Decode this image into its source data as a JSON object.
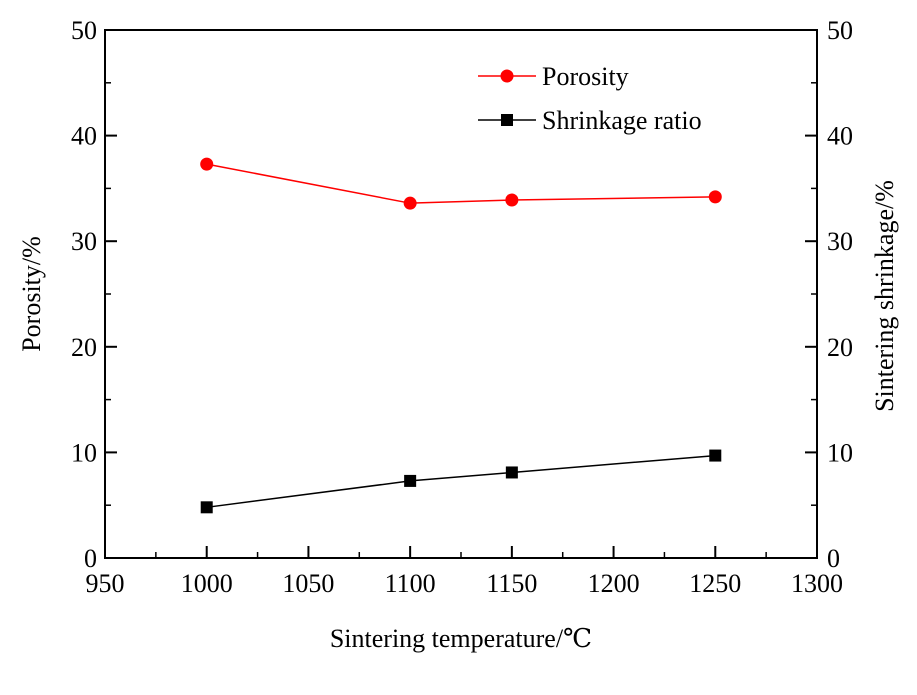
{
  "chart_data": {
    "type": "line",
    "xlabel": "Sintering temperature/℃",
    "ylabel_left": "Porosity/%",
    "ylabel_right": "Sintering shrinkage/%",
    "xlim": [
      950,
      1300
    ],
    "ylim_left": [
      0,
      50
    ],
    "ylim_right": [
      0,
      50
    ],
    "x_ticks": [
      "950",
      "1000",
      "1050",
      "1100",
      "1150",
      "1200",
      "1250",
      "1300"
    ],
    "y_ticks_left": [
      "0",
      "10",
      "20",
      "30",
      "40",
      "50"
    ],
    "y_ticks_right": [
      "0",
      "10",
      "20",
      "30",
      "40",
      "50"
    ],
    "grid": false,
    "legend_placement": "top-right",
    "series": [
      {
        "name": "Porosity",
        "marker": "circle",
        "axis": "left",
        "color": "#ff0000",
        "x": [
          1000,
          1100,
          1150,
          1250
        ],
        "values": [
          37.3,
          33.6,
          33.9,
          34.2
        ]
      },
      {
        "name": "Shrinkage ratio",
        "marker": "square",
        "axis": "right",
        "color": "#000000",
        "x": [
          1000,
          1100,
          1150,
          1250
        ],
        "values": [
          4.8,
          7.3,
          8.1,
          9.7
        ]
      }
    ]
  }
}
